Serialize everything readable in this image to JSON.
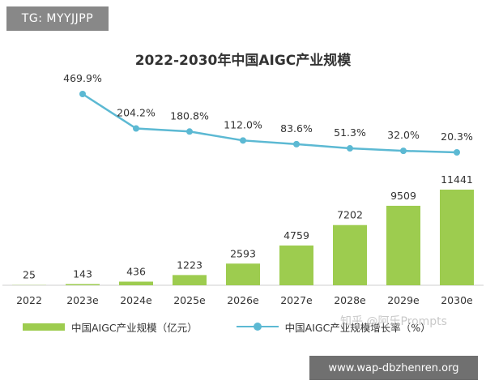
{
  "badge_top": "TG: MYYJJPP",
  "badge_bottom": "www.wap-dbzhenren.org",
  "watermark": "知乎 @阿乐Prompts",
  "chart_data": {
    "type": "bar+line",
    "title": "2022-2030年中国AIGC产业规模",
    "categories": [
      "2022",
      "2023e",
      "2024e",
      "2025e",
      "2026e",
      "2027e",
      "2028e",
      "2029e",
      "2030e"
    ],
    "series": [
      {
        "name": "中国AIGC产业规模（亿元）",
        "type": "bar",
        "values": [
          25,
          143,
          436,
          1223,
          2593,
          4759,
          7202,
          9509,
          11441
        ],
        "labels": [
          "25",
          "143",
          "436",
          "1223",
          "2593",
          "4759",
          "7202",
          "9509",
          "11441"
        ],
        "color": "#9dcc4f"
      },
      {
        "name": "中国AIGC产业规模增长率（%）",
        "type": "line",
        "values": [
          null,
          469.9,
          204.2,
          180.8,
          112.0,
          83.6,
          51.3,
          32.0,
          20.3
        ],
        "labels": [
          "",
          "469.9%",
          "204.2%",
          "180.8%",
          "112.0%",
          "83.6%",
          "51.3%",
          "32.0%",
          "20.3%"
        ],
        "color": "#5cb9d3"
      }
    ],
    "legend_position": "bottom",
    "grid": false
  }
}
